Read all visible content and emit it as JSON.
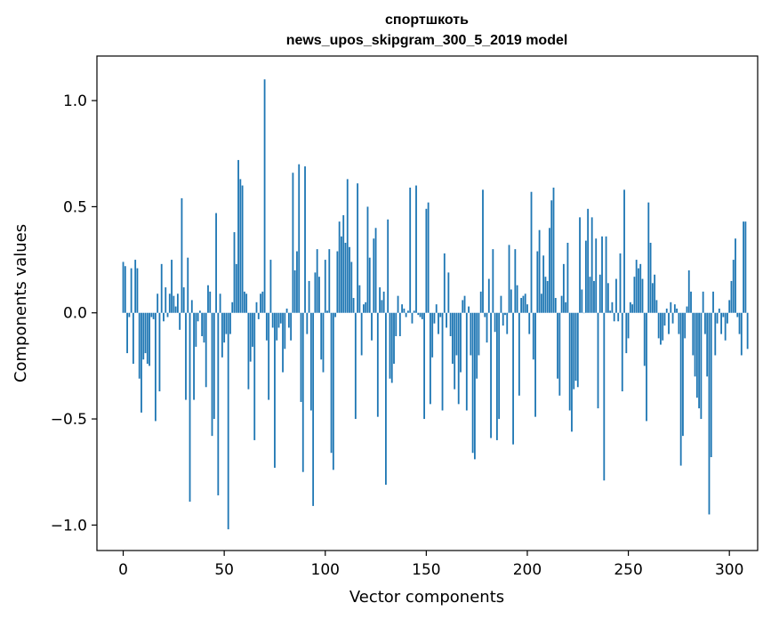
{
  "chart_data": {
    "type": "bar",
    "title": [
      "спортшкоть",
      "news_upos_skipgram_300_5_2019 model"
    ],
    "xlabel": "Vector components",
    "ylabel": "Components values",
    "xlim": [
      -13,
      314
    ],
    "ylim": [
      -1.12,
      1.21
    ],
    "xticks": [
      0,
      50,
      100,
      150,
      200,
      250,
      300
    ],
    "yticks": [
      -1.0,
      -0.5,
      0.0,
      0.5,
      1.0
    ],
    "ytick_labels": [
      "−1.0",
      "−0.5",
      "0.0",
      "0.5",
      "1.0"
    ],
    "bar_color": "#1f77b4",
    "grid": false,
    "legend": "none",
    "series": [
      {
        "values": [
          0.24,
          0.22,
          -0.19,
          -0.02,
          0.21,
          -0.24,
          0.25,
          0.21,
          -0.31,
          -0.47,
          -0.22,
          -0.19,
          -0.24,
          -0.25,
          -0.02,
          -0.03,
          -0.51,
          0.09,
          -0.37,
          0.23,
          -0.04,
          0.12,
          -0.02,
          0.09,
          0.25,
          0.08,
          0.03,
          0.09,
          -0.08,
          0.54,
          0.12,
          -0.41,
          0.26,
          -0.89,
          0.06,
          -0.41,
          -0.16,
          -0.04,
          0.01,
          -0.11,
          -0.14,
          -0.35,
          0.13,
          0.1,
          -0.58,
          -0.5,
          0.47,
          -0.86,
          0.09,
          -0.21,
          -0.14,
          -0.1,
          -1.02,
          -0.1,
          0.05,
          0.38,
          0.23,
          0.72,
          0.63,
          0.6,
          0.1,
          0.09,
          -0.36,
          -0.23,
          -0.16,
          -0.6,
          0.05,
          -0.03,
          0.09,
          0.1,
          1.1,
          -0.13,
          -0.41,
          0.25,
          -0.07,
          -0.73,
          -0.13,
          -0.07,
          -0.05,
          -0.28,
          -0.17,
          0.02,
          -0.07,
          -0.13,
          0.66,
          0.2,
          0.29,
          0.7,
          -0.42,
          -0.75,
          0.69,
          -0.1,
          0.15,
          -0.46,
          -0.91,
          0.19,
          0.3,
          0.17,
          -0.22,
          -0.28,
          0.25,
          0.01,
          0.3,
          -0.66,
          -0.74,
          -0.02,
          0.29,
          0.43,
          0.36,
          0.46,
          0.33,
          0.63,
          0.31,
          0.24,
          0.07,
          -0.5,
          0.61,
          0.13,
          -0.2,
          0.04,
          0.05,
          0.5,
          0.26,
          -0.13,
          0.35,
          0.4,
          -0.49,
          0.12,
          0.06,
          0.1,
          -0.81,
          0.44,
          -0.31,
          -0.33,
          -0.24,
          -0.11,
          0.08,
          -0.11,
          0.04,
          0.02,
          -0.02,
          0.01,
          0.59,
          -0.05,
          0.01,
          0.6,
          -0.01,
          -0.02,
          -0.03,
          -0.5,
          0.49,
          0.52,
          -0.43,
          -0.21,
          -0.05,
          0.04,
          -0.1,
          -0.02,
          -0.46,
          0.28,
          -0.07,
          0.19,
          -0.11,
          -0.24,
          -0.36,
          -0.2,
          -0.43,
          -0.28,
          0.06,
          0.08,
          -0.46,
          0.03,
          -0.2,
          -0.66,
          -0.69,
          -0.31,
          -0.2,
          0.1,
          0.58,
          -0.02,
          -0.14,
          0.16,
          -0.59,
          0.3,
          -0.09,
          -0.6,
          -0.5,
          0.08,
          -0.06,
          -0.01,
          -0.1,
          0.32,
          0.11,
          -0.62,
          0.3,
          0.13,
          -0.39,
          0.07,
          0.08,
          0.09,
          0.04,
          -0.1,
          0.57,
          -0.22,
          -0.49,
          0.29,
          0.39,
          0.09,
          0.27,
          0.17,
          0.15,
          0.4,
          0.53,
          0.59,
          0.07,
          -0.31,
          -0.39,
          0.08,
          0.23,
          0.05,
          0.33,
          -0.46,
          -0.56,
          -0.36,
          -0.32,
          -0.35,
          0.45,
          0.11,
          0.0,
          0.34,
          0.49,
          0.17,
          0.45,
          0.15,
          0.35,
          -0.45,
          0.18,
          0.36,
          -0.79,
          0.36,
          0.14,
          0.01,
          0.05,
          -0.04,
          0.16,
          -0.04,
          0.28,
          -0.37,
          0.58,
          -0.19,
          -0.12,
          0.05,
          0.04,
          0.17,
          0.25,
          0.21,
          0.23,
          0.16,
          -0.25,
          -0.51,
          0.52,
          0.33,
          0.14,
          0.18,
          0.06,
          -0.12,
          -0.15,
          -0.13,
          -0.06,
          0.02,
          -0.1,
          0.05,
          -0.05,
          0.04,
          0.02,
          -0.1,
          -0.72,
          -0.58,
          -0.12,
          0.03,
          0.2,
          0.1,
          -0.2,
          -0.3,
          -0.4,
          -0.45,
          -0.5,
          0.1,
          -0.1,
          -0.3,
          -0.95,
          -0.68,
          0.1,
          -0.2,
          -0.05,
          0.02,
          -0.1,
          -0.02,
          -0.13,
          -0.05,
          0.06,
          0.15,
          0.25,
          0.35,
          -0.02,
          -0.1,
          -0.2,
          0.43,
          0.43,
          -0.17
        ]
      }
    ]
  },
  "chart_data_note_free": true
}
